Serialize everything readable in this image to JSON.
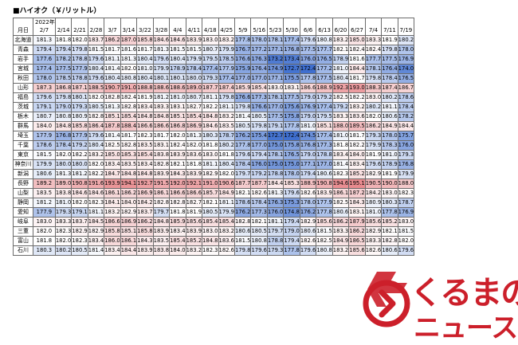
{
  "title": "■ハイオク（￥/リットル）",
  "header": {
    "corner_label": "月日",
    "year_label": "2022年",
    "dates": [
      "2/7",
      "2/14",
      "2/21",
      "2/28",
      "3/7",
      "3/14",
      "3/22",
      "3/28",
      "4/4",
      "4/11",
      "4/18",
      "4/25",
      "5/9",
      "5/16",
      "5/23",
      "5/30",
      "6/6",
      "6/13",
      "6/20",
      "6/27",
      "7/4",
      "7/11",
      "7/19"
    ]
  },
  "rows": [
    {
      "pref": "北海道",
      "values": [
        "181.3",
        "181.8",
        "182.0",
        "183.7",
        "186.2",
        "187.0",
        "185.8",
        "184.6",
        "184.6",
        "183.9",
        "183.0",
        "183.2",
        "177.8",
        "178.0",
        "178.1",
        "177.4",
        "179.6",
        "180.8",
        "183.2",
        "185.0",
        "183.3",
        "181.9",
        "180.2"
      ]
    },
    {
      "pref": "青森",
      "values": [
        "179.4",
        "179.4",
        "179.8",
        "181.5",
        "181.7",
        "181.6",
        "181.7",
        "181.3",
        "181.5",
        "181.5",
        "180.7",
        "179.9",
        "176.7",
        "177.2",
        "177.1",
        "176.8",
        "177.5",
        "177.7",
        "182.1",
        "182.4",
        "182.4",
        "179.8",
        "178.0"
      ]
    },
    {
      "pref": "岩手",
      "values": [
        "177.6",
        "178.2",
        "178.8",
        "179.6",
        "181.1",
        "181.3",
        "180.4",
        "179.6",
        "180.4",
        "179.9",
        "179.5",
        "178.5",
        "176.6",
        "176.3",
        "173.2",
        "173.4",
        "176.0",
        "176.5",
        "178.9",
        "181.6",
        "177.7",
        "177.5",
        "176.9"
      ]
    },
    {
      "pref": "宮城",
      "values": [
        "177.4",
        "177.5",
        "177.9",
        "180.4",
        "181.4",
        "182.0",
        "181.0",
        "179.9",
        "178.9",
        "178.4",
        "177.4",
        "177.9",
        "175.9",
        "176.4",
        "174.9",
        "172.7",
        "172.4",
        "177.2",
        "181.0",
        "184.4",
        "178.1",
        "176.4",
        "174.0"
      ]
    },
    {
      "pref": "秋田",
      "values": [
        "178.0",
        "178.5",
        "178.8",
        "179.6",
        "180.4",
        "180.8",
        "180.4",
        "180.1",
        "180.1",
        "180.0",
        "179.3",
        "177.4",
        "177.0",
        "177.0",
        "177.1",
        "175.5",
        "177.8",
        "177.5",
        "180.4",
        "181.7",
        "179.8",
        "178.4",
        "176.5"
      ]
    },
    {
      "pref": "山形",
      "values": [
        "187.3",
        "186.8",
        "187.1",
        "188.5",
        "190.7",
        "191.0",
        "188.8",
        "188.6",
        "188.6",
        "189.0",
        "187.7",
        "187.4",
        "185.9",
        "185.4",
        "183.0",
        "183.1",
        "186.6",
        "188.9",
        "192.3",
        "193.0",
        "188.3",
        "187.4",
        "186.7"
      ]
    },
    {
      "pref": "福島",
      "values": [
        "179.6",
        "179.8",
        "180.1",
        "182.0",
        "182.8",
        "182.4",
        "181.9",
        "181.2",
        "181.0",
        "180.7",
        "181.1",
        "179.8",
        "176.6",
        "177.3",
        "178.1",
        "177.5",
        "179.0",
        "179.2",
        "182.5",
        "182.2",
        "183.0",
        "180.2",
        "178.6"
      ]
    },
    {
      "pref": "茨城",
      "values": [
        "179.1",
        "179.0",
        "179.3",
        "180.5",
        "181.3",
        "182.8",
        "183.4",
        "183.3",
        "183.1",
        "182.7",
        "182.2",
        "181.1",
        "179.8",
        "176.6",
        "177.0",
        "175.6",
        "176.9",
        "177.4",
        "179.2",
        "183.2",
        "180.2",
        "181.1",
        "178.4"
      ]
    },
    {
      "pref": "栃木",
      "values": [
        "180.7",
        "180.8",
        "180.9",
        "182.8",
        "185.1",
        "185.4",
        "184.8",
        "184.8",
        "185.1",
        "185.4",
        "184.8",
        "183.2",
        "181.4",
        "180.5",
        "177.5",
        "175.8",
        "179.0",
        "179.5",
        "183.3",
        "183.6",
        "182.0",
        "180.6",
        "178.2"
      ]
    },
    {
      "pref": "群馬",
      "values": [
        "184.0",
        "184.8",
        "185.8",
        "186.4",
        "187.8",
        "188.4",
        "186.6",
        "186.6",
        "186.8",
        "186.9",
        "184.6",
        "183.5",
        "180.5",
        "179.8",
        "179.1",
        "177.8",
        "181.0",
        "185.1",
        "188.0",
        "189.5",
        "186.2",
        "184.9",
        "184.4"
      ]
    },
    {
      "pref": "埼玉",
      "values": [
        "177.9",
        "176.8",
        "177.9",
        "179.6",
        "181.4",
        "181.7",
        "182.3",
        "181.7",
        "182.0",
        "181.3",
        "180.3",
        "178.7",
        "176.2",
        "175.4",
        "172.7",
        "172.4",
        "174.5",
        "177.4",
        "181.0",
        "181.7",
        "179.3",
        "178.0",
        "175.7"
      ]
    },
    {
      "pref": "千葉",
      "values": [
        "178.6",
        "178.4",
        "179.2",
        "180.4",
        "182.5",
        "182.8",
        "183.5",
        "183.1",
        "182.4",
        "182.0",
        "181.8",
        "180.2",
        "177.8",
        "177.0",
        "175.0",
        "175.8",
        "176.8",
        "177.3",
        "181.8",
        "182.2",
        "179.9",
        "178.3",
        "176.0"
      ]
    },
    {
      "pref": "東京",
      "values": [
        "181.5",
        "182.0",
        "182.2",
        "183.2",
        "185.0",
        "185.3",
        "185.4",
        "183.8",
        "183.9",
        "183.6",
        "183.0",
        "181.8",
        "179.6",
        "179.4",
        "178.1",
        "176.5",
        "179.0",
        "178.8",
        "183.4",
        "184.0",
        "181.9",
        "181.0",
        "179.3"
      ]
    },
    {
      "pref": "神奈川",
      "values": [
        "179.9",
        "180.0",
        "180.0",
        "182.0",
        "183.4",
        "183.5",
        "183.4",
        "182.8",
        "182.1",
        "181.8",
        "181.1",
        "180.4",
        "178.4",
        "176.0",
        "175.0",
        "175.0",
        "177.1",
        "177.0",
        "181.4",
        "183.4",
        "179.6",
        "178.9",
        "176.8"
      ]
    },
    {
      "pref": "新潟",
      "values": [
        "180.6",
        "181.3",
        "181.2",
        "182.2",
        "184.7",
        "184.8",
        "184.8",
        "183.9",
        "184.3",
        "183.9",
        "182.9",
        "182.0",
        "179.7",
        "179.2",
        "178.8",
        "178.0",
        "179.4",
        "180.6",
        "182.3",
        "185.2",
        "182.9",
        "181.9",
        "179.9"
      ]
    },
    {
      "pref": "長野",
      "values": [
        "189.2",
        "189.0",
        "190.8",
        "191.6",
        "193.9",
        "194.1",
        "192.7",
        "191.5",
        "192.0",
        "192.1",
        "191.0",
        "190.6",
        "187.7",
        "187.7",
        "184.4",
        "185.3",
        "188.9",
        "190.8",
        "194.6",
        "195.1",
        "190.5",
        "190.0",
        "188.0"
      ]
    },
    {
      "pref": "山梨",
      "values": [
        "183.5",
        "183.8",
        "184.6",
        "184.6",
        "186.1",
        "186.2",
        "186.9",
        "186.1",
        "186.6",
        "186.6",
        "185.7",
        "184.9",
        "182.1",
        "182.6",
        "181.3",
        "179.6",
        "182.6",
        "183.9",
        "186.1",
        "187.2",
        "184.2",
        "183.0",
        "182.3"
      ]
    },
    {
      "pref": "静岡",
      "values": [
        "181.2",
        "181.0",
        "182.0",
        "182.3",
        "184.1",
        "184.0",
        "184.2",
        "182.8",
        "182.8",
        "182.7",
        "182.1",
        "181.1",
        "178.6",
        "178.4",
        "176.3",
        "175.3",
        "178.0",
        "177.9",
        "182.5",
        "184.3",
        "180.9",
        "180.3",
        "178.7"
      ]
    },
    {
      "pref": "愛知",
      "values": [
        "177.9",
        "179.3",
        "179.1",
        "181.1",
        "183.2",
        "182.9",
        "183.7",
        "179.7",
        "181.8",
        "181.9",
        "180.5",
        "179.9",
        "176.2",
        "177.3",
        "176.0",
        "174.8",
        "176.2",
        "177.8",
        "180.6",
        "183.1",
        "181.0",
        "177.8",
        "176.9"
      ]
    },
    {
      "pref": "岐阜",
      "values": [
        "183.0",
        "183.3",
        "183.7",
        "184.5",
        "186.6",
        "186.9",
        "186.2",
        "184.8",
        "185.9",
        "185.6",
        "185.4",
        "185.4",
        "182.8",
        "182.1",
        "181.1",
        "179.4",
        "182.9",
        "185.6",
        "186.2",
        "187.9",
        "185.6",
        "185.2",
        "183.0"
      ]
    },
    {
      "pref": "三重",
      "values": [
        "182.0",
        "182.3",
        "182.9",
        "182.9",
        "185.8",
        "185.1",
        "185.8",
        "183.9",
        "183.4",
        "183.9",
        "183.0",
        "183.2",
        "180.6",
        "180.5",
        "179.7",
        "179.0",
        "180.6",
        "181.5",
        "183.3",
        "186.2",
        "182.9",
        "182.1",
        "181.5"
      ]
    },
    {
      "pref": "富山",
      "values": [
        "181.8",
        "182.0",
        "182.3",
        "183.4",
        "186.0",
        "186.1",
        "184.3",
        "183.5",
        "185.4",
        "185.2",
        "184.8",
        "183.6",
        "181.5",
        "180.8",
        "178.8",
        "179.4",
        "182.6",
        "182.5",
        "184.9",
        "186.5",
        "183.3",
        "182.8",
        "182.0"
      ]
    },
    {
      "pref": "石川",
      "values": [
        "180.3",
        "180.2",
        "180.5",
        "181.4",
        "183.4",
        "184.4",
        "183.9",
        "183.8",
        "184.0",
        "183.2",
        "182.3",
        "182.6",
        "179.8",
        "179.6",
        "179.3",
        "177.8",
        "179.6",
        "180.8",
        "183.2",
        "185.6",
        "182.6",
        "180.6",
        "179.6"
      ]
    }
  ],
  "colors": {
    "high": "#e88a8e",
    "mid": "#ffffff",
    "low": "#3f6fcf",
    "grid": "#6b6b6b"
  },
  "logo": {
    "text_top": "くるまの",
    "text_bottom": "ニュース",
    "color": "#cc1f2a"
  }
}
